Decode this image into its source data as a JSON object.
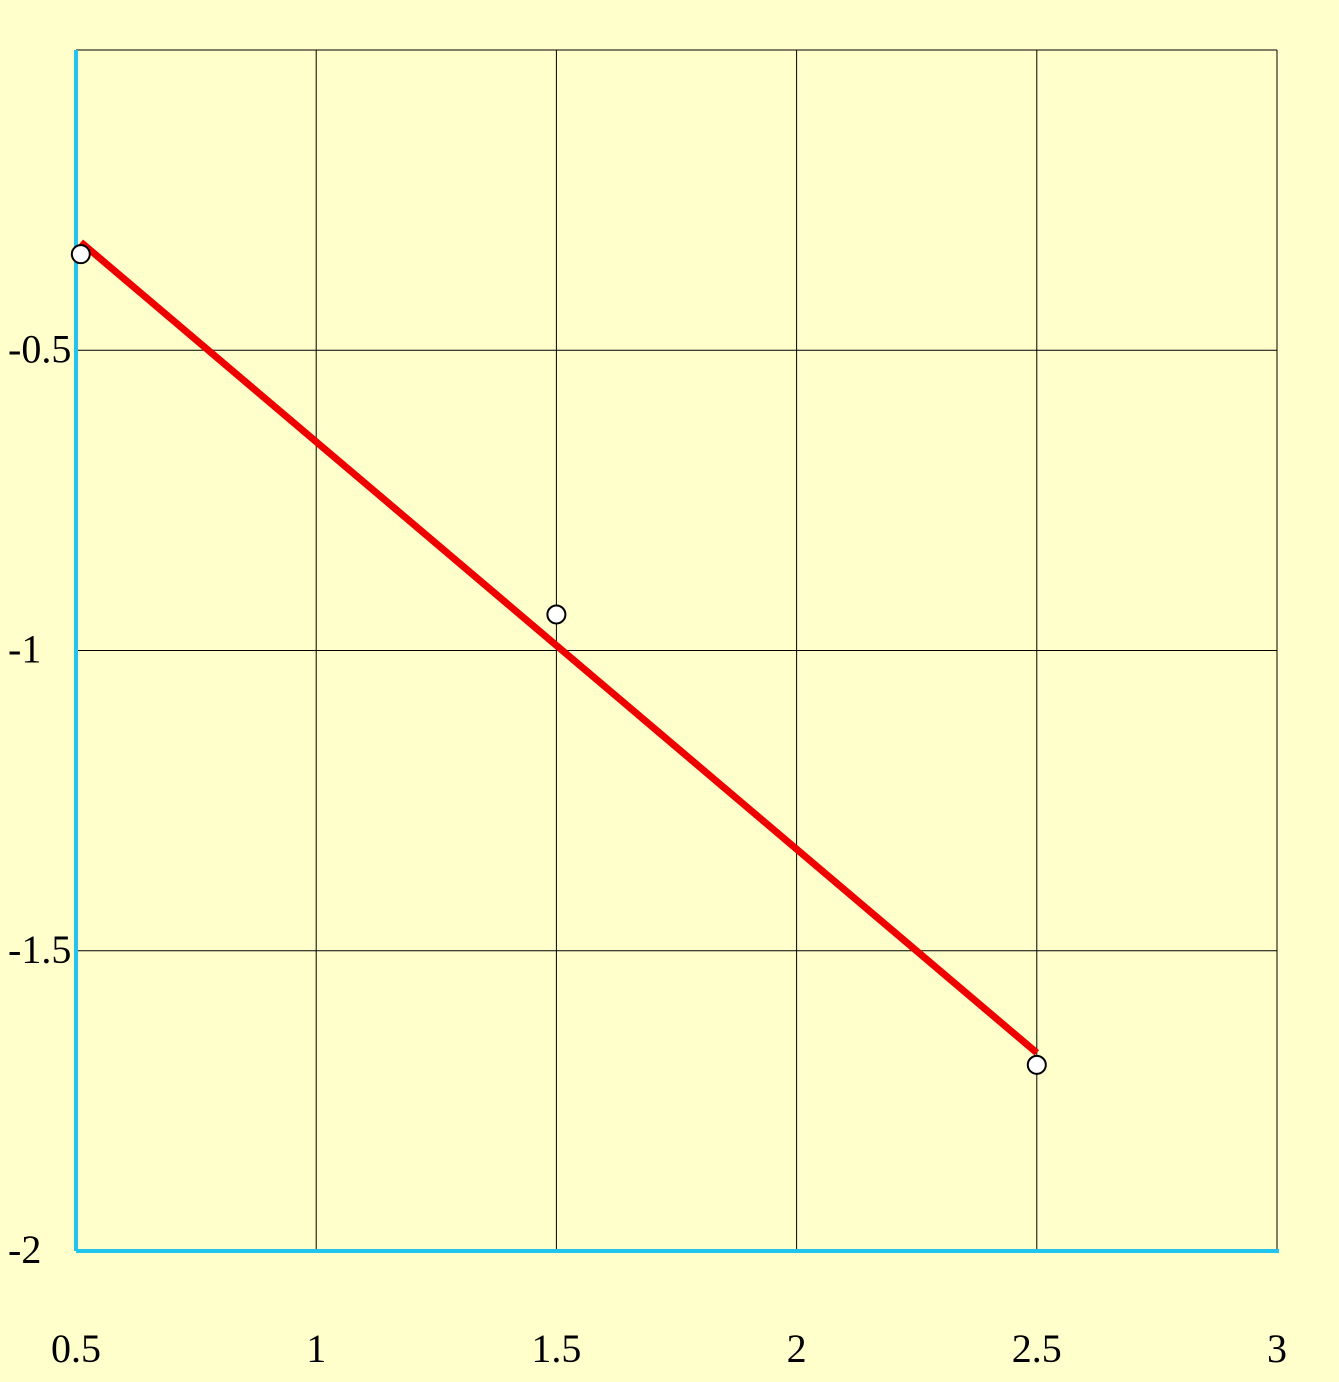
{
  "chart_data": {
    "type": "scatter",
    "points": {
      "x": [
        0.51,
        1.5,
        2.5
      ],
      "y": [
        -0.34,
        -0.94,
        -1.69
      ],
      "color": "#ffffff",
      "stroke": "#000000"
    },
    "fit_line": {
      "x": [
        0.51,
        2.5
      ],
      "y": [
        -0.32,
        -1.67
      ],
      "color": "#ee0000"
    },
    "xlim": [
      0.5,
      3
    ],
    "ylim": [
      -2,
      0
    ],
    "xticks": [
      0.5,
      1,
      1.5,
      2,
      2.5,
      3
    ],
    "yticks": [
      -2,
      -1.5,
      -1,
      -0.5
    ],
    "grid": true,
    "axis_color": "#22c4ee",
    "background": "#ffffcc"
  }
}
